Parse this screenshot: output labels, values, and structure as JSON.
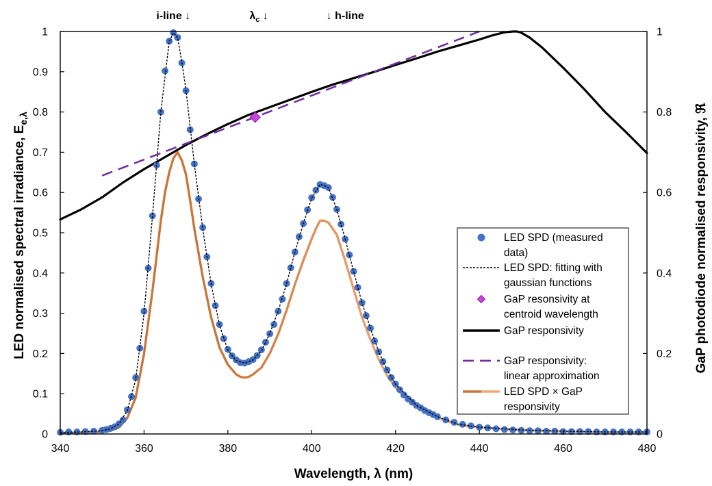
{
  "chart_data": {
    "type": "line",
    "xlabel": "Wavelength, λ (nm)",
    "ylabel_left": "LED normalised spectral irradiance, Ee,λ",
    "ylabel_left_main": "LED normalised spectral irradiance, E",
    "ylabel_left_sub": "e,λ",
    "ylabel_right": "GaP photodiode normalised responsivity, ℜ",
    "xlim": [
      340,
      480
    ],
    "ylim_left": [
      0,
      1
    ],
    "ylim_right": [
      0,
      1
    ],
    "x_ticks": [
      "340",
      "360",
      "380",
      "400",
      "420",
      "440",
      "460",
      "480"
    ],
    "y_left_ticks": [
      "0",
      "0.1",
      "0.2",
      "0.3",
      "0.4",
      "0.5",
      "0.6",
      "0.7",
      "0.8",
      "0.9",
      "1"
    ],
    "y_right_ticks": [
      "0",
      "0.2",
      "0.4",
      "0.6",
      "0.8",
      "1"
    ],
    "grid": false,
    "legend_position": "bottom-right",
    "annotations": [
      {
        "text": "i-line ↓",
        "x": 367
      },
      {
        "text": "↓",
        "x": 390,
        "prefix": "λ",
        "prefix_sub": "c"
      },
      {
        "text": "↓ h-line",
        "x": 408
      }
    ],
    "series": [
      {
        "name": "LED SPD (measured data)",
        "legend_lines": [
          "LED SPD (measured",
          "data)"
        ],
        "style": "markers",
        "color": "#4472C4",
        "x": [
          340,
          342,
          344,
          346,
          348,
          350,
          351,
          352,
          353,
          354,
          355,
          356,
          357,
          358,
          359,
          360,
          361,
          362,
          363,
          364,
          365,
          366,
          367,
          368,
          369,
          370,
          371,
          372,
          373,
          374,
          375,
          376,
          377,
          378,
          379,
          380,
          381,
          382,
          383,
          384,
          385,
          386,
          387,
          388,
          389,
          390,
          391,
          392,
          393,
          394,
          395,
          396,
          397,
          398,
          399,
          400,
          401,
          402,
          403,
          404,
          405,
          406,
          407,
          408,
          409,
          410,
          411,
          412,
          413,
          414,
          415,
          416,
          417,
          418,
          419,
          420,
          421,
          422,
          423,
          424,
          425,
          426,
          427,
          428,
          429,
          430,
          432,
          434,
          436,
          438,
          440,
          442,
          444,
          446,
          448,
          450,
          452,
          454,
          456,
          458,
          460,
          462,
          464,
          466,
          468,
          470,
          472,
          474,
          476,
          478,
          480
        ],
        "y": [
          0.004,
          0.005,
          0.005,
          0.006,
          0.007,
          0.009,
          0.011,
          0.014,
          0.018,
          0.025,
          0.035,
          0.06,
          0.093,
          0.14,
          0.213,
          0.305,
          0.412,
          0.542,
          0.668,
          0.8,
          0.902,
          0.976,
          0.997,
          0.985,
          0.922,
          0.853,
          0.756,
          0.671,
          0.584,
          0.513,
          0.44,
          0.374,
          0.319,
          0.272,
          0.237,
          0.21,
          0.194,
          0.184,
          0.177,
          0.176,
          0.18,
          0.185,
          0.195,
          0.209,
          0.228,
          0.249,
          0.272,
          0.305,
          0.335,
          0.374,
          0.413,
          0.452,
          0.49,
          0.523,
          0.557,
          0.587,
          0.606,
          0.62,
          0.617,
          0.612,
          0.588,
          0.558,
          0.521,
          0.484,
          0.445,
          0.404,
          0.364,
          0.326,
          0.294,
          0.263,
          0.231,
          0.204,
          0.18,
          0.159,
          0.14,
          0.124,
          0.11,
          0.097,
          0.087,
          0.079,
          0.071,
          0.065,
          0.058,
          0.053,
          0.048,
          0.043,
          0.035,
          0.029,
          0.024,
          0.02,
          0.017,
          0.015,
          0.013,
          0.011,
          0.01,
          0.009,
          0.008,
          0.008,
          0.007,
          0.007,
          0.006,
          0.006,
          0.006,
          0.006,
          0.005,
          0.005,
          0.005,
          0.005,
          0.005,
          0.005,
          0.005
        ]
      },
      {
        "name": "LED SPD: fitting with gaussian functions",
        "legend_lines": [
          "LED SPD: fitting with",
          "gaussian functions"
        ],
        "style": "dotted",
        "color": "#000000",
        "x": [
          340,
          345,
          350,
          352,
          354,
          356,
          358,
          360,
          362,
          364,
          366,
          367,
          368,
          369,
          370,
          372,
          374,
          376,
          378,
          380,
          382,
          384,
          386,
          388,
          390,
          392,
          394,
          396,
          398,
          400,
          402,
          403,
          404,
          406,
          408,
          410,
          412,
          414,
          416,
          418,
          420,
          425,
          430,
          435,
          440,
          450,
          460,
          470,
          480
        ],
        "y": [
          0.004,
          0.005,
          0.008,
          0.013,
          0.025,
          0.058,
          0.135,
          0.3,
          0.54,
          0.8,
          0.975,
          0.997,
          0.985,
          0.925,
          0.855,
          0.67,
          0.51,
          0.373,
          0.27,
          0.208,
          0.182,
          0.176,
          0.184,
          0.206,
          0.25,
          0.305,
          0.373,
          0.452,
          0.522,
          0.586,
          0.62,
          0.617,
          0.612,
          0.558,
          0.484,
          0.404,
          0.326,
          0.263,
          0.204,
          0.159,
          0.124,
          0.071,
          0.043,
          0.024,
          0.017,
          0.01,
          0.007,
          0.005,
          0.005
        ]
      },
      {
        "name": "GaP resonsivity at centroid wavelength",
        "legend_lines": [
          "GaP resonsivity at",
          "centroid wavelength"
        ],
        "style": "diamond",
        "color": "#CC44DD",
        "x": [
          386.5
        ],
        "y": [
          0.787
        ]
      },
      {
        "name": "GaP responsivity",
        "legend_lines": [
          "GaP responsivity"
        ],
        "style": "solid",
        "color": "#000000",
        "x": [
          340,
          345,
          350,
          355,
          360,
          365,
          370,
          375,
          380,
          385,
          390,
          395,
          400,
          405,
          410,
          415,
          420,
          425,
          430,
          435,
          440,
          443,
          446,
          448,
          449,
          450,
          452,
          455,
          460,
          465,
          470,
          475,
          480
        ],
        "y": [
          0.533,
          0.558,
          0.588,
          0.625,
          0.658,
          0.688,
          0.718,
          0.745,
          0.77,
          0.793,
          0.812,
          0.831,
          0.85,
          0.868,
          0.884,
          0.9,
          0.917,
          0.933,
          0.95,
          0.965,
          0.98,
          0.99,
          0.998,
          1.0,
          1.0,
          0.997,
          0.985,
          0.96,
          0.91,
          0.857,
          0.8,
          0.75,
          0.698
        ]
      },
      {
        "name": "GaP responsivity: linear approximation",
        "legend_lines": [
          "GaP responsivity:",
          "linear approximation"
        ],
        "style": "dashed",
        "color": "#7030A0",
        "x": [
          350,
          440
        ],
        "y": [
          0.642,
          1.0
        ]
      },
      {
        "name": "LED SPD × GaP responsivity",
        "legend_lines": [
          "LED SPD × GaP",
          "responsivity"
        ],
        "style": "solid-gradient",
        "color": "#C8773A",
        "color2": "#F0A878",
        "x": [
          340,
          345,
          350,
          352,
          354,
          356,
          358,
          360,
          362,
          364,
          365,
          366,
          367,
          368,
          369,
          370,
          371,
          372,
          374,
          376,
          378,
          380,
          382,
          383,
          384,
          385,
          386,
          388,
          390,
          392,
          394,
          396,
          398,
          400,
          401,
          402,
          403,
          404,
          405,
          406,
          408,
          410,
          412,
          414,
          416,
          418,
          420,
          425,
          430,
          435,
          440,
          450,
          460,
          470,
          480
        ],
        "y": [
          0.002,
          0.003,
          0.005,
          0.008,
          0.016,
          0.04,
          0.09,
          0.2,
          0.355,
          0.53,
          0.6,
          0.65,
          0.685,
          0.7,
          0.68,
          0.645,
          0.58,
          0.51,
          0.39,
          0.29,
          0.215,
          0.172,
          0.148,
          0.142,
          0.14,
          0.142,
          0.148,
          0.165,
          0.2,
          0.248,
          0.307,
          0.372,
          0.431,
          0.485,
          0.51,
          0.53,
          0.53,
          0.525,
          0.51,
          0.495,
          0.43,
          0.36,
          0.29,
          0.235,
          0.185,
          0.145,
          0.115,
          0.066,
          0.04,
          0.023,
          0.016,
          0.01,
          0.006,
          0.004,
          0.004
        ]
      }
    ]
  }
}
